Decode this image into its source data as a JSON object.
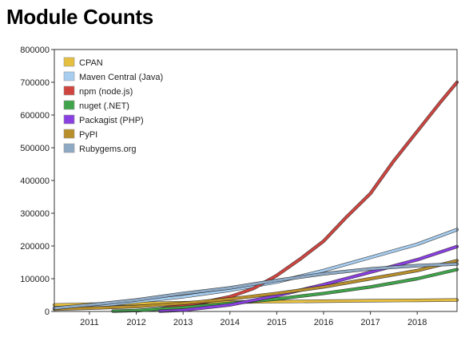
{
  "page": {
    "title": "Module Counts"
  },
  "chart_data": {
    "type": "line",
    "title": "Module Counts",
    "xlabel": "",
    "ylabel": "",
    "xlim": [
      2010.25,
      2018.85
    ],
    "ylim": [
      0,
      800000
    ],
    "x_ticks": [
      2011,
      2012,
      2013,
      2014,
      2015,
      2016,
      2017,
      2018
    ],
    "y_ticks": [
      0,
      100000,
      200000,
      300000,
      400000,
      500000,
      600000,
      700000,
      800000
    ],
    "grid": false,
    "legend_position": "top-left",
    "series": [
      {
        "name": "CPAN",
        "color": "#e6bf3f",
        "x": [
          2010.25,
          2011,
          2012,
          2013,
          2014,
          2015,
          2016,
          2017,
          2018,
          2018.85
        ],
        "y": [
          20000,
          22000,
          24500,
          26500,
          28500,
          30000,
          31500,
          33000,
          34000,
          35000
        ]
      },
      {
        "name": "Maven Central (Java)",
        "color": "#a7cdf0",
        "x": [
          2010.25,
          2011,
          2012,
          2013,
          2014,
          2015,
          2016,
          2017,
          2018,
          2018.85
        ],
        "y": [
          10000,
          15000,
          30000,
          45000,
          65000,
          90000,
          125000,
          165000,
          205000,
          250000
        ]
      },
      {
        "name": "npm (node.js)",
        "color": "#d0443f",
        "x": [
          2012,
          2012.5,
          2013,
          2013.5,
          2014,
          2014.5,
          2015,
          2015.5,
          2016,
          2016.5,
          2017,
          2017.5,
          2018,
          2018.5,
          2018.85
        ],
        "y": [
          2000,
          8000,
          18000,
          30000,
          45000,
          70000,
          110000,
          160000,
          215000,
          290000,
          360000,
          460000,
          550000,
          640000,
          700000
        ]
      },
      {
        "name": "nuget (.NET)",
        "color": "#3fa34a",
        "x": [
          2011.5,
          2012,
          2013,
          2014,
          2015,
          2016,
          2017,
          2018,
          2018.85
        ],
        "y": [
          1000,
          3000,
          12000,
          25000,
          38000,
          55000,
          75000,
          100000,
          128000
        ]
      },
      {
        "name": "Packagist (PHP)",
        "color": "#8a3fe0",
        "x": [
          2012.5,
          2013,
          2014,
          2015,
          2016,
          2017,
          2018,
          2018.85
        ],
        "y": [
          1000,
          4000,
          20000,
          48000,
          82000,
          120000,
          158000,
          198000
        ]
      },
      {
        "name": "PyPI",
        "color": "#b88f2a",
        "x": [
          2010.25,
          2011,
          2012,
          2013,
          2014,
          2015,
          2016,
          2017,
          2018,
          2018.85
        ],
        "y": [
          7000,
          10000,
          15000,
          25000,
          38000,
          55000,
          75000,
          100000,
          125000,
          155000
        ]
      },
      {
        "name": "Rubygems.org",
        "color": "#8ea9c4",
        "x": [
          2010.25,
          2011,
          2012,
          2013,
          2014,
          2015,
          2016,
          2017,
          2018,
          2018.85
        ],
        "y": [
          10000,
          20000,
          35000,
          55000,
          72000,
          95000,
          115000,
          130000,
          140000,
          145000
        ]
      }
    ]
  }
}
